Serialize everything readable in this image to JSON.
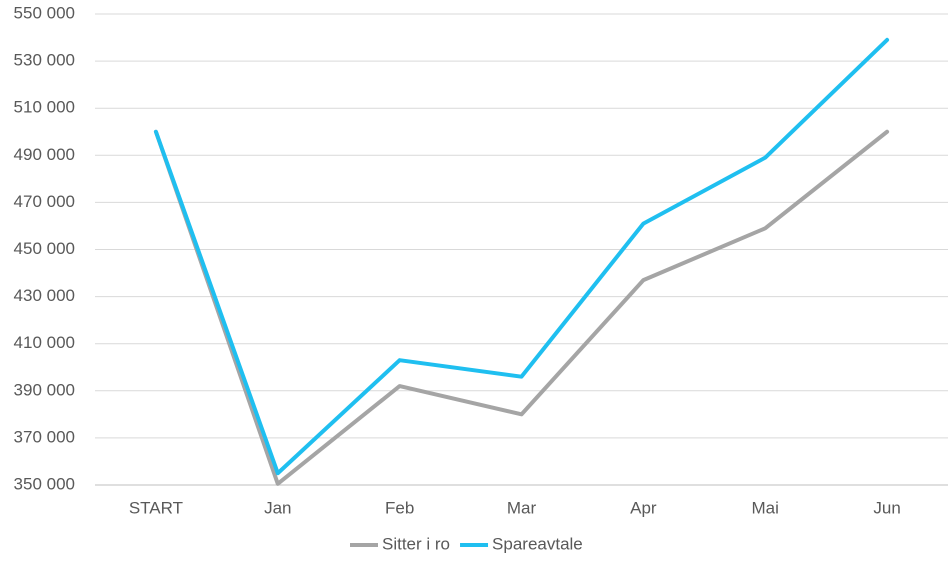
{
  "chart_data": {
    "type": "line",
    "categories": [
      "START",
      "Jan",
      "Feb",
      "Mar",
      "Apr",
      "Mai",
      "Jun"
    ],
    "series": [
      {
        "name": "Sitter i ro",
        "color": "#a5a5a5",
        "values": [
          500000,
          350500,
          392000,
          380000,
          437000,
          459000,
          500000
        ]
      },
      {
        "name": "Spareavtale",
        "color": "#1fbff0",
        "values": [
          500000,
          355000,
          403000,
          396000,
          461000,
          489000,
          539000
        ]
      }
    ],
    "ylim": [
      350000,
      550000
    ],
    "yticks": [
      {
        "value": 350000,
        "label": "350 000"
      },
      {
        "value": 370000,
        "label": "370 000"
      },
      {
        "value": 390000,
        "label": "390 000"
      },
      {
        "value": 410000,
        "label": "410 000"
      },
      {
        "value": 430000,
        "label": "430 000"
      },
      {
        "value": 450000,
        "label": "450 000"
      },
      {
        "value": 470000,
        "label": "470 000"
      },
      {
        "value": 490000,
        "label": "490 000"
      },
      {
        "value": 510000,
        "label": "510 000"
      },
      {
        "value": 530000,
        "label": "530 000"
      },
      {
        "value": 550000,
        "label": "550 000"
      }
    ],
    "grid": true,
    "legend": "bottom"
  }
}
